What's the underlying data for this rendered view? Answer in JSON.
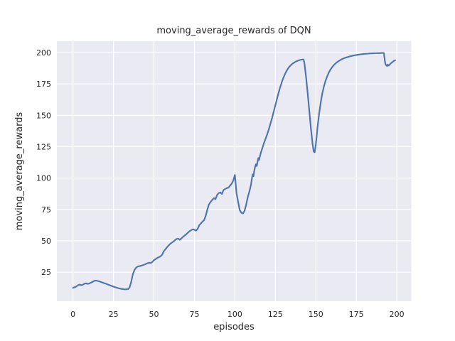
{
  "chart_data": {
    "type": "line",
    "title": "moving_average_rewards of DQN",
    "xlabel": "episodes",
    "ylabel": "moving_average_rewards",
    "xticks": [
      0,
      25,
      50,
      75,
      100,
      125,
      150,
      175,
      200
    ],
    "yticks": [
      25,
      50,
      75,
      100,
      125,
      150,
      175,
      200
    ],
    "xlim": [
      -9.95,
      208.95
    ],
    "ylim": [
      1.9,
      209.0
    ],
    "grid": true,
    "legend": "none",
    "colors": {
      "line": "#4c72b0",
      "axes_background": "#eaeaf2",
      "figure_background": "#ffffff",
      "grid": "#ffffff",
      "text": "#262626"
    },
    "x": [
      0,
      1,
      2,
      3,
      4,
      5,
      6,
      7,
      8,
      9,
      10,
      11,
      12,
      13,
      14,
      15,
      16,
      18,
      20,
      22,
      24,
      26,
      28,
      30,
      32,
      34,
      35,
      36,
      37,
      38,
      39,
      40,
      42,
      44,
      46,
      47,
      48,
      49,
      50,
      52,
      54,
      55,
      56,
      58,
      60,
      62,
      64,
      65,
      66,
      68,
      70,
      72,
      74,
      75,
      76,
      77,
      78,
      80,
      81,
      82,
      83,
      84,
      85,
      86,
      87,
      88,
      89,
      90,
      91,
      92,
      93,
      94,
      95,
      96,
      97,
      98,
      99,
      100,
      101,
      102,
      103,
      104,
      105,
      106,
      107,
      108,
      109,
      110,
      110.5,
      111,
      111.5,
      112,
      112.5,
      113,
      113.5,
      114,
      114.5,
      115,
      115.5,
      116,
      117,
      118,
      119,
      120,
      121,
      122,
      123,
      124,
      125,
      126,
      127,
      128,
      129,
      130,
      131,
      132,
      133,
      134,
      135,
      136,
      137,
      138,
      139,
      140,
      141,
      142,
      142.5,
      143,
      144,
      145,
      146,
      147,
      148,
      148.7,
      149.3,
      150,
      150.5,
      151,
      152,
      153,
      154,
      155,
      156,
      157,
      158,
      159,
      160,
      161,
      162,
      163,
      164,
      165,
      166,
      167,
      168,
      169,
      170,
      171,
      172,
      173,
      174,
      175,
      176,
      177,
      178,
      179,
      180,
      181,
      182,
      183,
      184,
      185,
      186,
      187,
      188,
      189,
      190,
      191,
      192,
      192.4,
      192.7,
      193,
      193.5,
      194,
      194.5,
      195,
      195.5,
      196,
      197,
      198,
      199
    ],
    "y": [
      12.5,
      13,
      13.6,
      14.5,
      15.2,
      14.7,
      15,
      15.8,
      16.2,
      15.7,
      16,
      16.6,
      17.3,
      18,
      18.4,
      18.1,
      17.8,
      16.9,
      16,
      15,
      14,
      13.1,
      12.3,
      11.7,
      11.3,
      11.5,
      13,
      17.5,
      23.5,
      26.8,
      28.6,
      29.6,
      30.1,
      31,
      32.2,
      32.6,
      32.3,
      33.2,
      34.6,
      36.3,
      37.6,
      38.8,
      41.5,
      44.8,
      47.6,
      49.4,
      51.5,
      51.8,
      50.8,
      53.2,
      55.3,
      57.7,
      59.2,
      58.8,
      58.1,
      59.6,
      62.5,
      65.3,
      66.5,
      70,
      75,
      79,
      81,
      82.5,
      84,
      83.2,
      86.5,
      88,
      88.6,
      87.3,
      90.5,
      91.3,
      92,
      92.4,
      93.9,
      95.5,
      98,
      102.5,
      88,
      81,
      74.5,
      72.3,
      71.8,
      74,
      79,
      85,
      89.5,
      95,
      99.5,
      103,
      101.5,
      106,
      109,
      111,
      109.5,
      113,
      116,
      114.5,
      117.5,
      120,
      124,
      128,
      131.5,
      135,
      139,
      143.5,
      148,
      153,
      158,
      163,
      168,
      172.5,
      176.5,
      180,
      183,
      185.5,
      187.6,
      189.2,
      190.5,
      191.5,
      192.3,
      193,
      193.5,
      194,
      194.3,
      194.5,
      194.3,
      191,
      180,
      167,
      153,
      139,
      127,
      121,
      120.5,
      127,
      133,
      140,
      151,
      160,
      167.5,
      173,
      177.5,
      181,
      184,
      186.3,
      188.2,
      189.8,
      191.1,
      192.2,
      193.1,
      193.9,
      194.6,
      195.2,
      195.7,
      196.1,
      196.5,
      196.9,
      197.2,
      197.5,
      197.8,
      198,
      198.2,
      198.4,
      198.6,
      198.8,
      198.9,
      199,
      199.1,
      199.2,
      199.3,
      199.35,
      199.4,
      199.45,
      199.5,
      199.5,
      199.55,
      199.6,
      199.6,
      196,
      192.5,
      190.8,
      189.8,
      189.2,
      190.4,
      189.6,
      190.2,
      191,
      192.1,
      193.1,
      193.8
    ]
  }
}
